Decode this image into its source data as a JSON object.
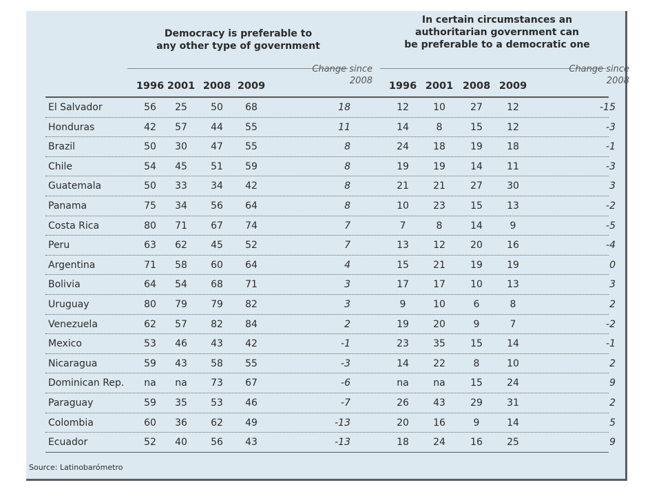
{
  "chart_data": {
    "type": "table",
    "source": "Source: Latinobarómetro",
    "groups": [
      {
        "title_lines": [
          "Democracy is preferable to",
          "any other type of government"
        ],
        "columns": [
          "1996",
          "2001",
          "2008",
          "2009"
        ],
        "change_label_lines": [
          "Change since",
          "2008"
        ]
      },
      {
        "title_lines": [
          "In certain circumstances an",
          "authoritarian government can",
          "be preferable to a democratic one"
        ],
        "columns": [
          "1996",
          "2001",
          "2008",
          "2009"
        ],
        "change_label_lines": [
          "Change since",
          "2008"
        ]
      }
    ],
    "rows": [
      {
        "country": "El Salvador",
        "dem": [
          "56",
          "25",
          "50",
          "68"
        ],
        "dem_change": "18",
        "auth": [
          "12",
          "10",
          "27",
          "12"
        ],
        "auth_change": "-15"
      },
      {
        "country": "Honduras",
        "dem": [
          "42",
          "57",
          "44",
          "55"
        ],
        "dem_change": "11",
        "auth": [
          "14",
          "8",
          "15",
          "12"
        ],
        "auth_change": "-3"
      },
      {
        "country": "Brazil",
        "dem": [
          "50",
          "30",
          "47",
          "55"
        ],
        "dem_change": "8",
        "auth": [
          "24",
          "18",
          "19",
          "18"
        ],
        "auth_change": "-1"
      },
      {
        "country": "Chile",
        "dem": [
          "54",
          "45",
          "51",
          "59"
        ],
        "dem_change": "8",
        "auth": [
          "19",
          "19",
          "14",
          "11"
        ],
        "auth_change": "-3"
      },
      {
        "country": "Guatemala",
        "dem": [
          "50",
          "33",
          "34",
          "42"
        ],
        "dem_change": "8",
        "auth": [
          "21",
          "21",
          "27",
          "30"
        ],
        "auth_change": "3"
      },
      {
        "country": "Panama",
        "dem": [
          "75",
          "34",
          "56",
          "64"
        ],
        "dem_change": "8",
        "auth": [
          "10",
          "23",
          "15",
          "13"
        ],
        "auth_change": "-2"
      },
      {
        "country": "Costa Rica",
        "dem": [
          "80",
          "71",
          "67",
          "74"
        ],
        "dem_change": "7",
        "auth": [
          "7",
          "8",
          "14",
          "9"
        ],
        "auth_change": "-5"
      },
      {
        "country": "Peru",
        "dem": [
          "63",
          "62",
          "45",
          "52"
        ],
        "dem_change": "7",
        "auth": [
          "13",
          "12",
          "20",
          "16"
        ],
        "auth_change": "-4"
      },
      {
        "country": "Argentina",
        "dem": [
          "71",
          "58",
          "60",
          "64"
        ],
        "dem_change": "4",
        "auth": [
          "15",
          "21",
          "19",
          "19"
        ],
        "auth_change": "0"
      },
      {
        "country": "Bolivia",
        "dem": [
          "64",
          "54",
          "68",
          "71"
        ],
        "dem_change": "3",
        "auth": [
          "17",
          "17",
          "10",
          "13"
        ],
        "auth_change": "3"
      },
      {
        "country": "Uruguay",
        "dem": [
          "80",
          "79",
          "79",
          "82"
        ],
        "dem_change": "3",
        "auth": [
          "9",
          "10",
          "6",
          "8"
        ],
        "auth_change": "2"
      },
      {
        "country": "Venezuela",
        "dem": [
          "62",
          "57",
          "82",
          "84"
        ],
        "dem_change": "2",
        "auth": [
          "19",
          "20",
          "9",
          "7"
        ],
        "auth_change": "-2"
      },
      {
        "country": "Mexico",
        "dem": [
          "53",
          "46",
          "43",
          "42"
        ],
        "dem_change": "-1",
        "auth": [
          "23",
          "35",
          "15",
          "14"
        ],
        "auth_change": "-1"
      },
      {
        "country": "Nicaragua",
        "dem": [
          "59",
          "43",
          "58",
          "55"
        ],
        "dem_change": "-3",
        "auth": [
          "14",
          "22",
          "8",
          "10"
        ],
        "auth_change": "2"
      },
      {
        "country": "Dominican Rep.",
        "dem": [
          "na",
          "na",
          "73",
          "67"
        ],
        "dem_change": "-6",
        "auth": [
          "na",
          "na",
          "15",
          "24"
        ],
        "auth_change": "9"
      },
      {
        "country": "Paraguay",
        "dem": [
          "59",
          "35",
          "53",
          "46"
        ],
        "dem_change": "-7",
        "auth": [
          "26",
          "43",
          "29",
          "31"
        ],
        "auth_change": "2"
      },
      {
        "country": "Colombia",
        "dem": [
          "60",
          "36",
          "62",
          "49"
        ],
        "dem_change": "-13",
        "auth": [
          "20",
          "16",
          "9",
          "14"
        ],
        "auth_change": "5"
      },
      {
        "country": "Ecuador",
        "dem": [
          "52",
          "40",
          "56",
          "43"
        ],
        "dem_change": "-13",
        "auth": [
          "18",
          "24",
          "16",
          "25"
        ],
        "auth_change": "9"
      }
    ]
  }
}
